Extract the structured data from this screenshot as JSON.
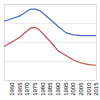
{
  "chart_data": {
    "type": "line",
    "x": [
      1955,
      1965,
      1972,
      1975,
      1978,
      1985,
      1990,
      1995,
      2000,
      2005,
      2010,
      2015
    ],
    "series": [
      {
        "color": "#4a6fc4",
        "values": [
          78,
          85,
          94,
          94,
          92,
          80,
          71,
          63,
          60,
          59,
          59,
          59
        ]
      },
      {
        "color": "#c0504d",
        "values": [
          45,
          57,
          69,
          70,
          66,
          51,
          39,
          33,
          27,
          23,
          21,
          20
        ]
      }
    ],
    "xlim": [
      1955,
      2015
    ],
    "xticks": [
      1960,
      1965,
      1970,
      1975,
      1980,
      1985,
      1990,
      1995,
      2000,
      2005,
      2010,
      2015
    ],
    "ylim": [
      0,
      100
    ],
    "yticks": [
      0,
      25,
      50,
      75,
      100
    ],
    "grid": true,
    "tick_labels": "x"
  }
}
